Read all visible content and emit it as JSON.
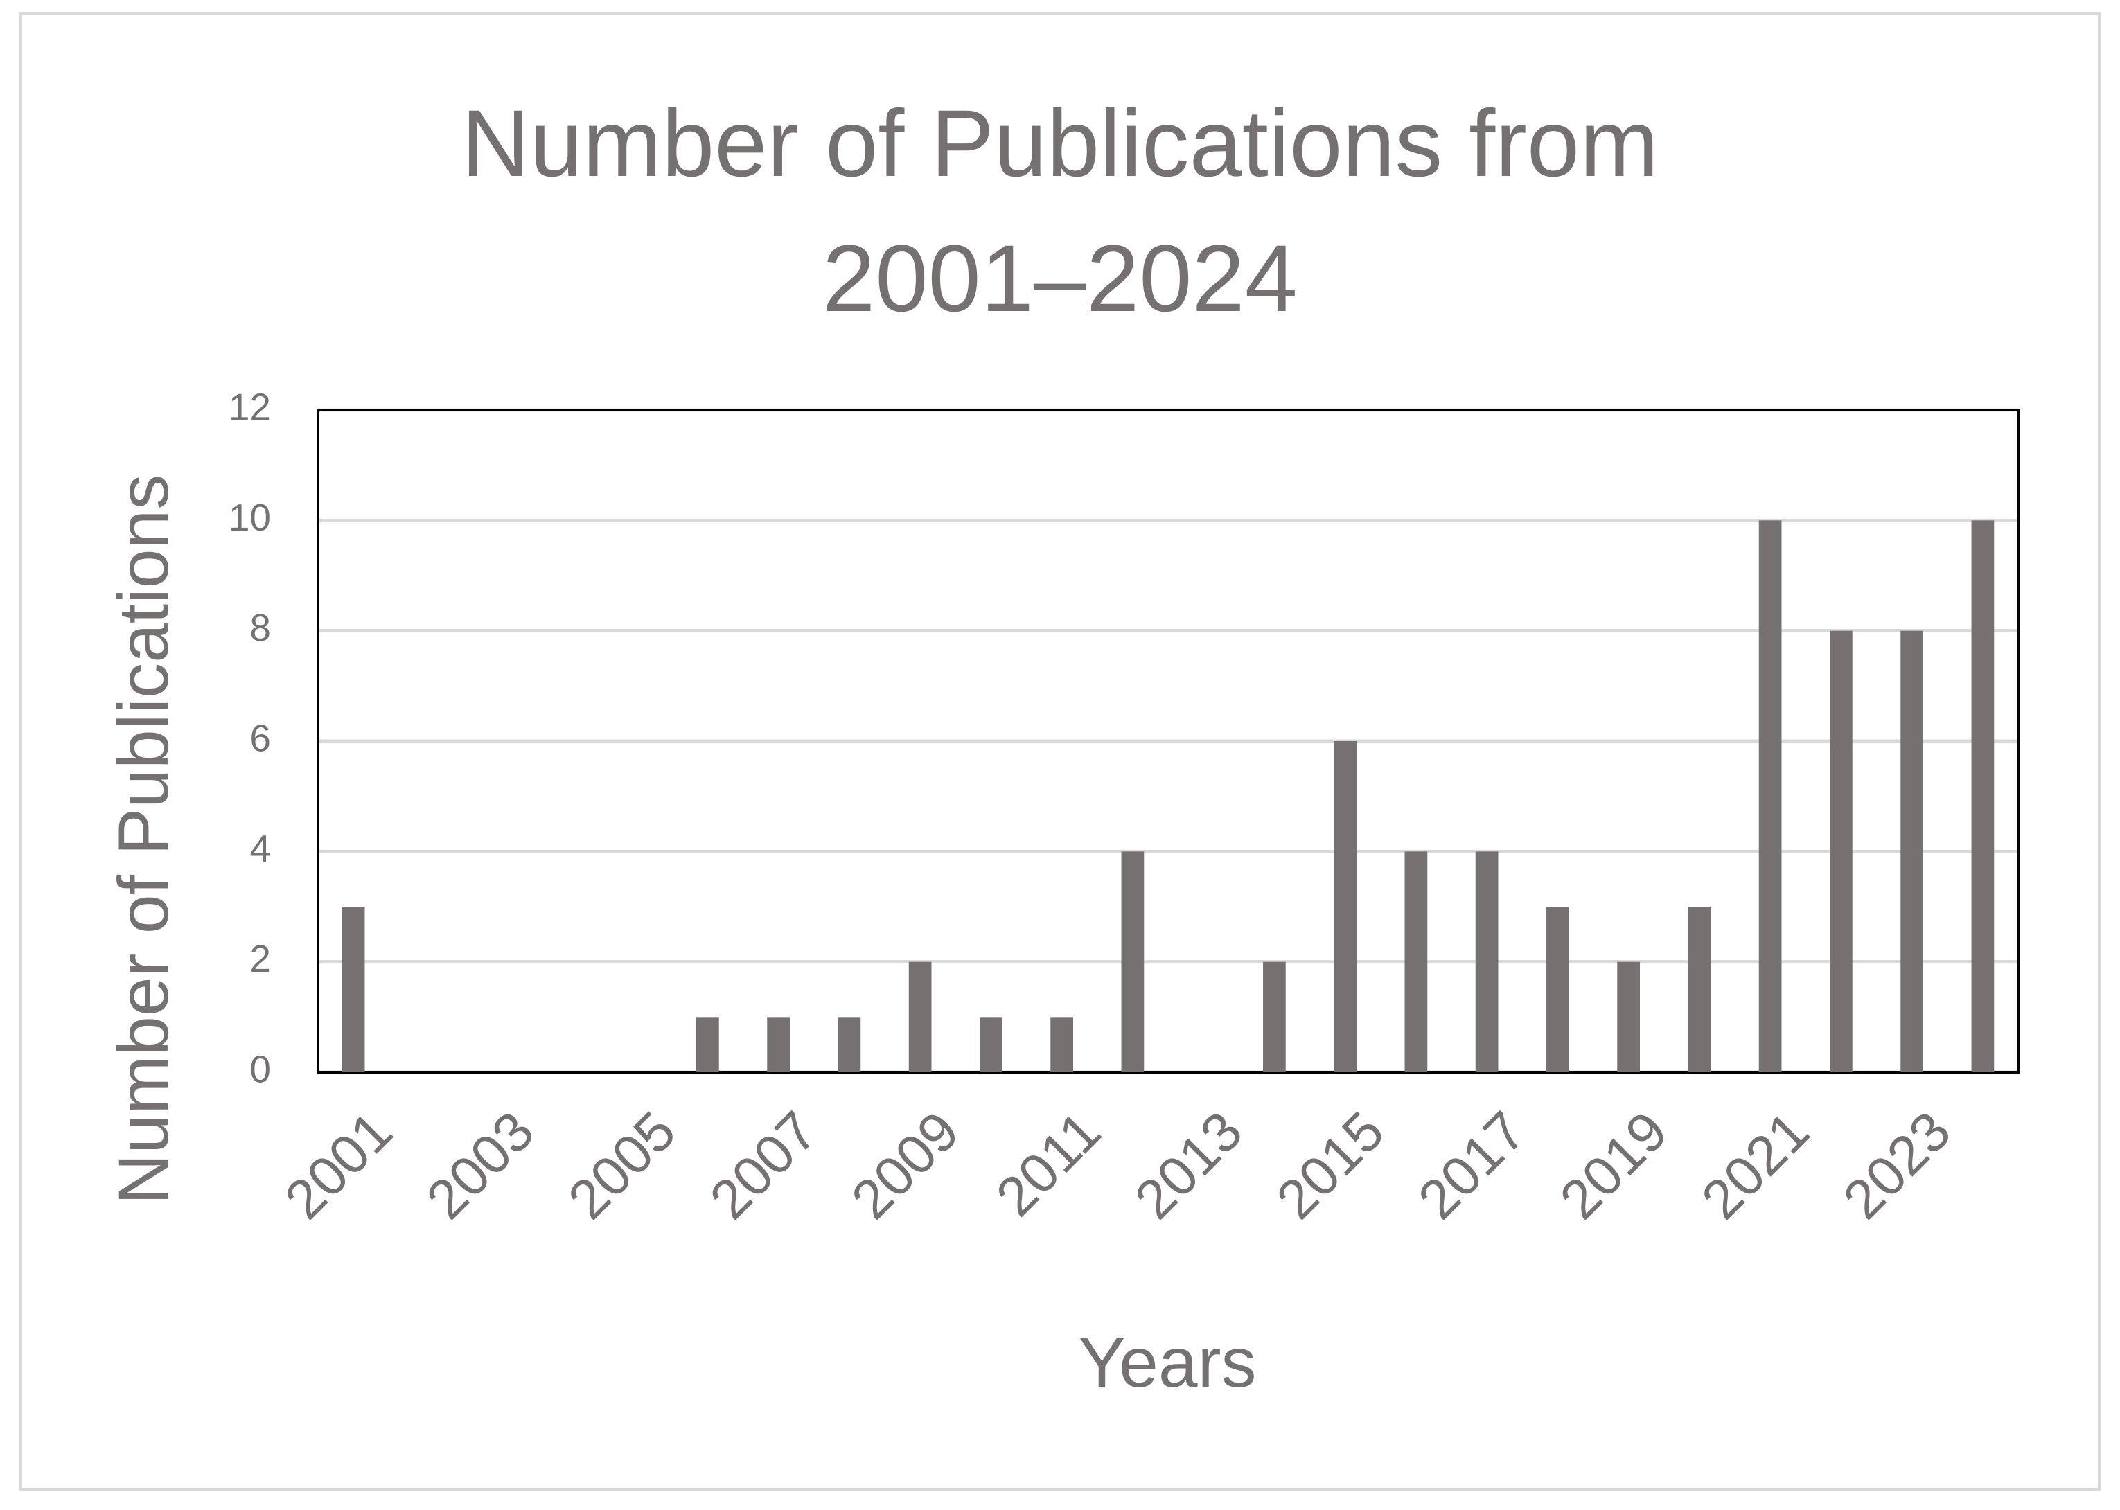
{
  "chart_data": {
    "type": "bar",
    "title": "Number of Publications from 2001–2024",
    "x_label": "Years",
    "y_label": "Number of Publications",
    "categories": [
      "2001",
      null,
      "2003",
      null,
      "2005",
      null,
      "2007",
      null,
      "2009",
      null,
      "2011",
      null,
      "2013",
      null,
      "2015",
      null,
      "2017",
      null,
      "2019",
      null,
      "2021",
      null,
      "2023",
      null
    ],
    "values": [
      3,
      0,
      0,
      0,
      0,
      1,
      1,
      1,
      2,
      1,
      1,
      4,
      0,
      2,
      6,
      4,
      4,
      3,
      2,
      3,
      10,
      8,
      8,
      10
    ],
    "color": "#767171",
    "ylim": [
      0,
      12
    ],
    "yticks": [
      0,
      2,
      4,
      6,
      8,
      10,
      12
    ],
    "grid": true
  }
}
